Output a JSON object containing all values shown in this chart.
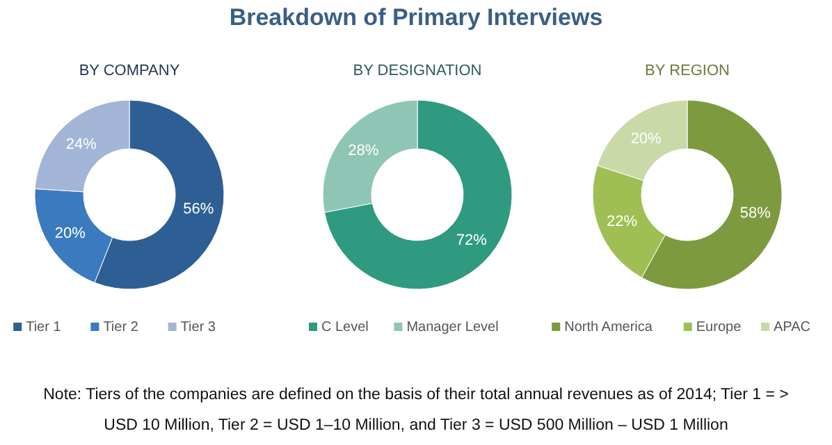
{
  "chart_data": [
    {
      "type": "other",
      "title": "Breakdown of Primary Interviews",
      "annotations": [
        "Note: Tiers of the companies are defined on the basis of their total annual revenues as of 2014; Tier 1 = >",
        "USD 10 Million, Tier 2 = USD 1–10 Million, and Tier 3 = USD 500 Million – USD 1 Million"
      ]
    },
    {
      "type": "donut",
      "title": "BY COMPANY",
      "categories": [
        "Tier 1",
        "Tier 2",
        "Tier 3"
      ],
      "values": [
        56,
        20,
        24
      ],
      "value_labels": [
        "56%",
        "20%",
        "24%"
      ],
      "colors": [
        "#2e5f94",
        "#3a7bbf",
        "#a3b5d6"
      ],
      "legend": "bottom"
    },
    {
      "type": "donut",
      "title": "BY DESIGNATION",
      "categories": [
        "C Level",
        "Manager Level"
      ],
      "values": [
        72,
        28
      ],
      "value_labels": [
        "72%",
        "28%"
      ],
      "colors": [
        "#2f9a80",
        "#8fc5b4"
      ],
      "legend": "bottom"
    },
    {
      "type": "donut",
      "title": "BY REGION",
      "categories": [
        "North America",
        "Europe",
        "APAC"
      ],
      "values": [
        58,
        22,
        20
      ],
      "value_labels": [
        "58%",
        "22%",
        "20%"
      ],
      "colors": [
        "#7d9a3e",
        "#9fbf55",
        "#c9d9a8"
      ],
      "legend": "bottom"
    }
  ]
}
